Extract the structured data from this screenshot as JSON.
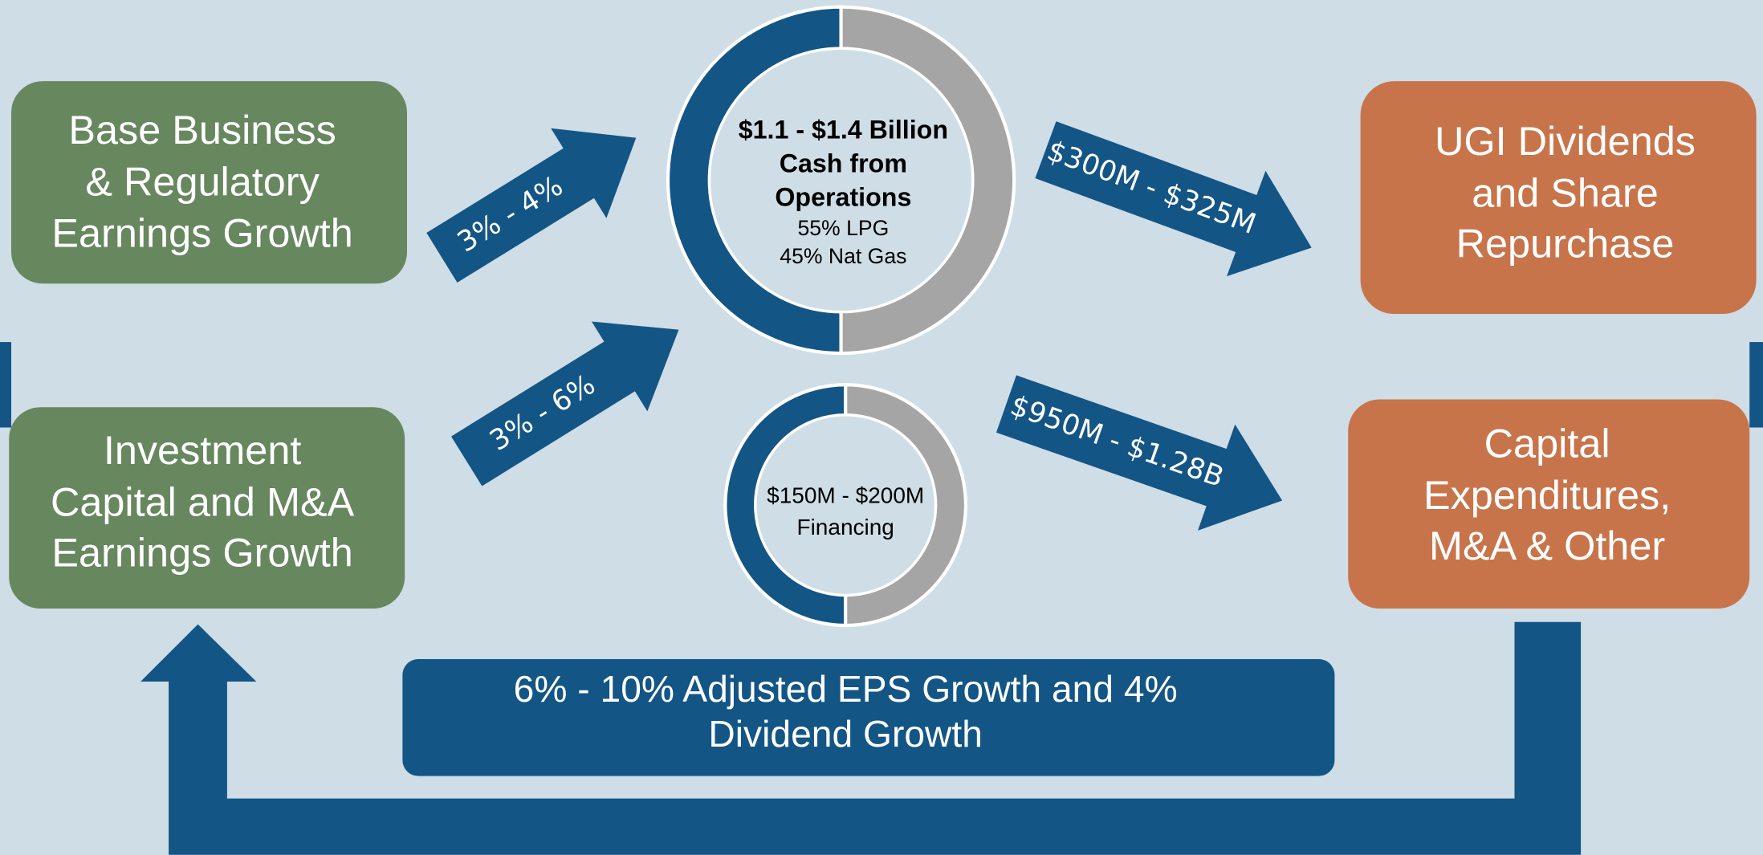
{
  "sources": [
    {
      "lines": [
        "Base Business",
        "& Regulatory",
        "Earnings Growth"
      ]
    },
    {
      "lines": [
        "Investment",
        "Capital and M&A",
        "Earnings Growth"
      ]
    }
  ],
  "uses": [
    {
      "lines": [
        "UGI Dividends",
        "and Share",
        "Repurchase"
      ]
    },
    {
      "lines": [
        "Capital",
        "Expenditures,",
        "M&A & Other"
      ]
    }
  ],
  "arrows": [
    "3% - 4%",
    "3% - 6%",
    "$300M - $325M",
    "$950M - $1.28B"
  ],
  "cash": {
    "lines": [
      "$1.1 - $1.4 Billion",
      "Cash from",
      "Operations"
    ],
    "split": [
      "55% LPG",
      "45% Nat Gas"
    ]
  },
  "financing": {
    "lines": [
      "$150M - $200M",
      "Financing"
    ]
  },
  "outcome": {
    "lines": [
      "6% - 10% Adjusted EPS Growth and 4%",
      "Dividend Growth"
    ]
  }
}
